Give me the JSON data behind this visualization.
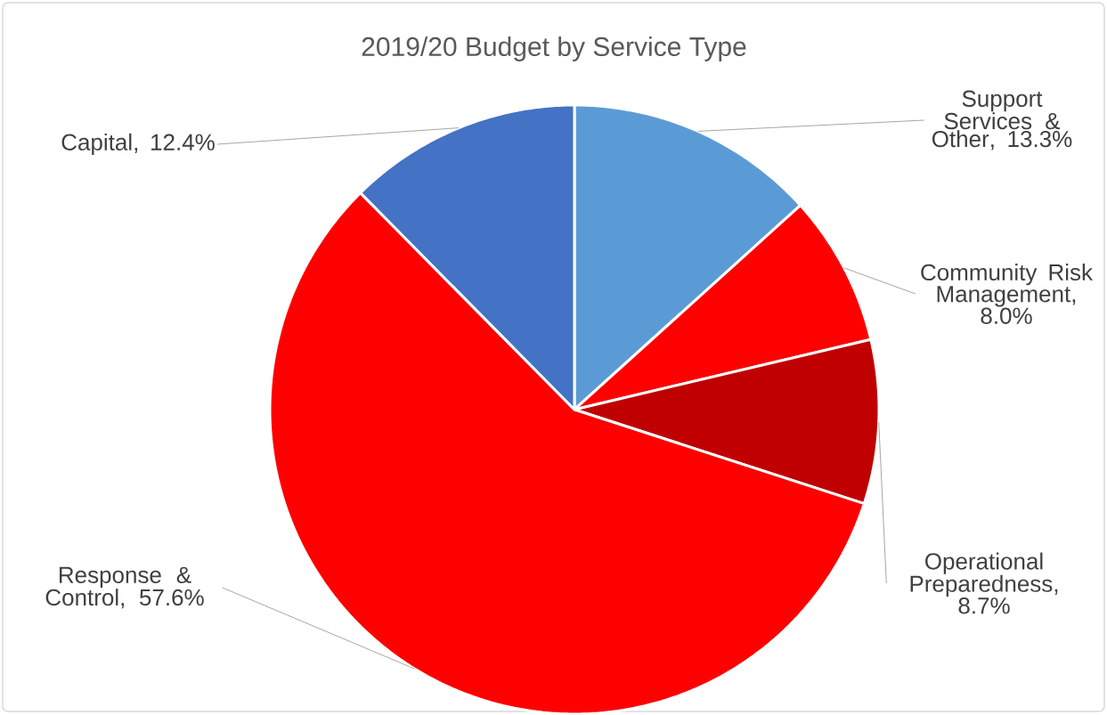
{
  "chart_data": {
    "type": "pie",
    "title": "2019/20 Budget by Service Type",
    "categories": [
      "Support Services & Other",
      "Community Risk Management",
      "Operational Preparedness",
      "Response & Control",
      "Capital"
    ],
    "values": [
      13.3,
      8.0,
      8.7,
      57.6,
      12.4
    ],
    "value_labels": [
      ", 13.3%",
      ", 8.0%",
      ", 8.7%",
      ", 57.6%",
      ", 12.4%"
    ],
    "colors": [
      "#5b9bd5",
      "#ff0000",
      "#c00000",
      "#ff0000",
      "#4472c4"
    ]
  }
}
